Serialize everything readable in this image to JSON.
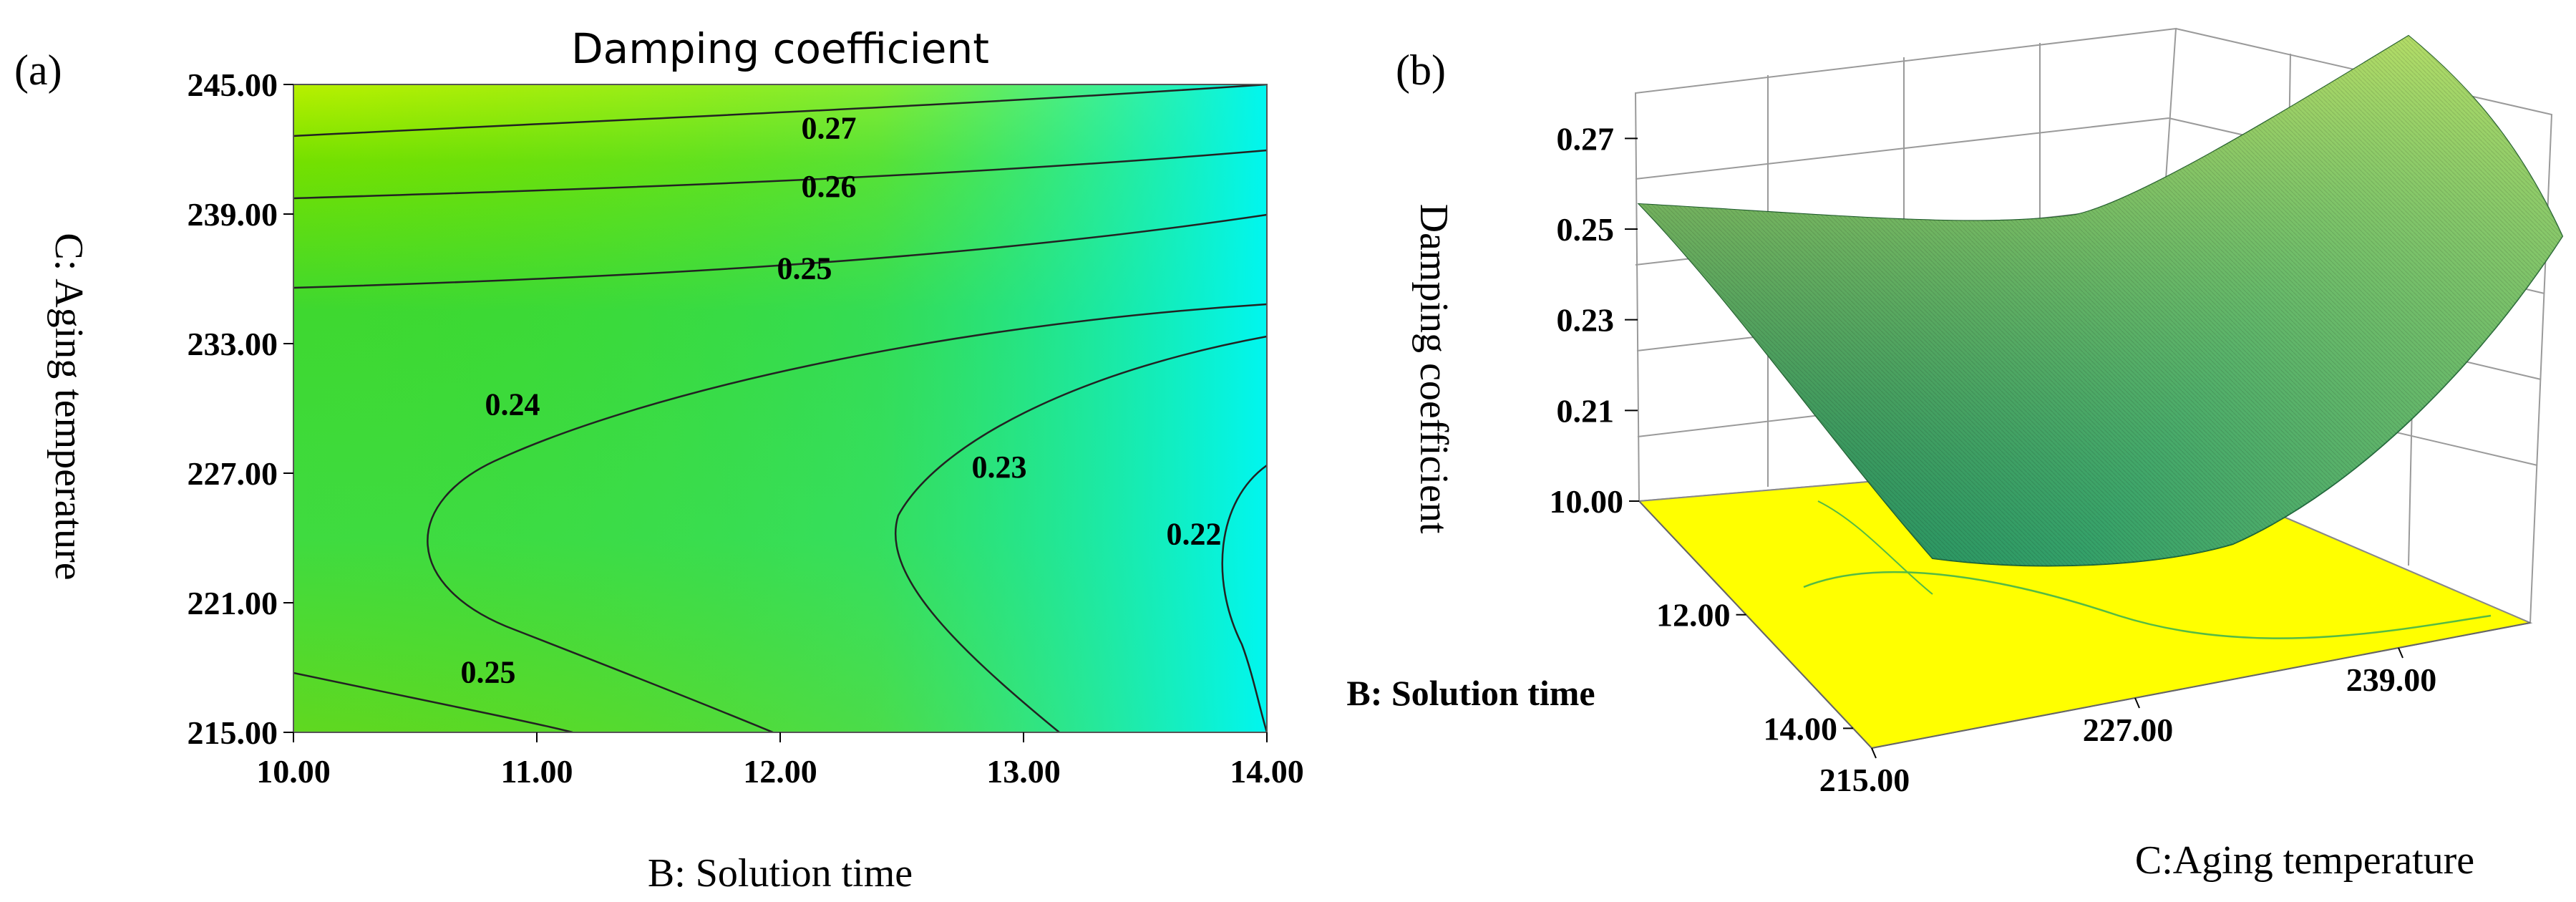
{
  "chart_data": [
    {
      "type": "contour",
      "panel_label": "(a)",
      "title": "Damping coefficient",
      "xlabel": "B: Solution time",
      "ylabel": "C: Aging temperature",
      "xlim": [
        10.0,
        14.0
      ],
      "ylim": [
        215.0,
        245.0
      ],
      "xticks": [
        "10.00",
        "11.00",
        "12.00",
        "13.00",
        "14.00"
      ],
      "yticks": [
        "215.00",
        "221.00",
        "227.00",
        "233.00",
        "239.00",
        "245.00"
      ],
      "contour_levels": [
        {
          "label": "0.27",
          "value": 0.27,
          "label_at": [
            12.2,
            242.5
          ]
        },
        {
          "label": "0.26",
          "value": 0.26,
          "label_at": [
            12.2,
            239.8
          ]
        },
        {
          "label": "0.25",
          "value": 0.25,
          "label_at": [
            12.1,
            236.0
          ]
        },
        {
          "label": "0.24",
          "value": 0.24,
          "label_at": [
            10.9,
            229.7
          ]
        },
        {
          "label": "0.23",
          "value": 0.23,
          "label_at": [
            12.9,
            226.8
          ]
        },
        {
          "label": "0.22",
          "value": 0.22,
          "label_at": [
            13.7,
            223.7
          ]
        },
        {
          "label": "0.25",
          "value": 0.25,
          "label_at": [
            10.8,
            217.3
          ]
        }
      ],
      "colormap": [
        "#00f7f2",
        "#22e85a",
        "#63dd00",
        "#c8f500"
      ]
    },
    {
      "type": "surface",
      "panel_label": "(b)",
      "zlabel": "Damping coefficient",
      "xlabel": "C:Aging temperature",
      "ylabel": "B: Solution time",
      "zticks": [
        "0.21",
        "0.23",
        "0.25",
        "0.27"
      ],
      "xticks": [
        "215.00",
        "227.00",
        "239.00"
      ],
      "yticks": [
        "10.00",
        "12.00",
        "14.00"
      ],
      "xlim": [
        215.0,
        245.0
      ],
      "ylim": [
        10.0,
        14.0
      ],
      "zlim": [
        0.19,
        0.28
      ],
      "floor_color": "#ffff00",
      "surface_colors": [
        "#0a5a2a",
        "#2e9a4e",
        "#7fc64a",
        "#c4e26a"
      ]
    }
  ]
}
